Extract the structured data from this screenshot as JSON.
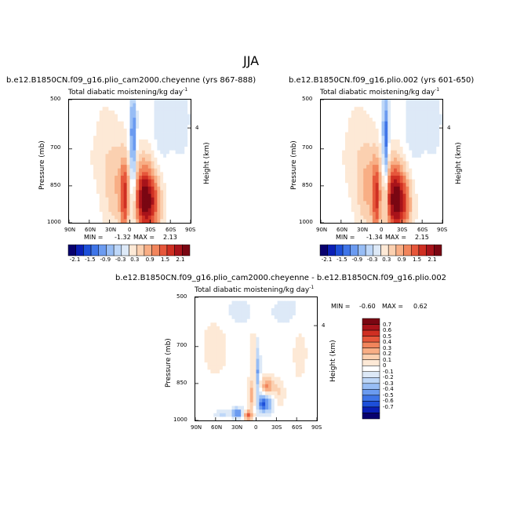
{
  "figure": {
    "title": "JJA",
    "colors": {
      "neg": [
        "#08006e",
        "#0a1fb5",
        "#1d4fd9",
        "#3f75e8",
        "#6b9bf0",
        "#97bdf5",
        "#bed7f8",
        "#dde9f7"
      ],
      "pos": [
        "#fde9d6",
        "#fbd0b0",
        "#f8ae85",
        "#f1855c",
        "#e6573b",
        "#cf2f22",
        "#a8131a",
        "#7a0612"
      ],
      "zero": "#ffffff"
    }
  },
  "chart_data": [
    {
      "type": "heatmap",
      "case": "b.e12.B1850CN.f09_g16.plio_cam2000.cheyenne (yrs 867-888)",
      "title": "Total diabatic moistening/kg day",
      "title_exp": "-1",
      "ylabel": "Pressure (mb)",
      "ylabel_right": "Height (km)",
      "xticks": [
        "90N",
        "60N",
        "30N",
        "0",
        "30S",
        "60S",
        "90S"
      ],
      "yticks": [
        "500",
        "700",
        "850",
        "1000"
      ],
      "yticks_right": [
        "4"
      ],
      "min_label": "MIN =",
      "min": "-1.32",
      "max_label": "MAX =",
      "max": "2.13",
      "colorbar": [
        "-2.1",
        "-1.5",
        "-0.9",
        "-0.3",
        "0.3",
        "0.9",
        "1.5",
        "2.1"
      ],
      "blobs": [
        {
          "lat": -5,
          "p": 720,
          "w": 4,
          "h": 220,
          "v": -1.3
        },
        {
          "lat": -4,
          "p": 600,
          "w": 6,
          "h": 140,
          "v": -0.5
        },
        {
          "lat": 20,
          "p": 860,
          "w": 18,
          "h": 180,
          "v": 0.7
        },
        {
          "lat": 8,
          "p": 900,
          "w": 6,
          "h": 160,
          "v": 1.4
        },
        {
          "lat": -20,
          "p": 900,
          "w": 14,
          "h": 150,
          "v": 2.1
        },
        {
          "lat": -35,
          "p": 920,
          "w": 14,
          "h": 140,
          "v": 1.2
        },
        {
          "lat": -45,
          "p": 620,
          "w": 14,
          "h": 200,
          "v": -0.3
        },
        {
          "lat": 40,
          "p": 680,
          "w": 26,
          "h": 200,
          "v": 0.25
        },
        {
          "lat": 60,
          "p": 560,
          "w": 10,
          "h": 100,
          "v": -0.2
        },
        {
          "lat": -75,
          "p": 580,
          "w": 18,
          "h": 200,
          "v": -0.25
        }
      ]
    },
    {
      "type": "heatmap",
      "case": "b.e12.B1850CN.f09_g16.plio.002 (yrs 601-650)",
      "title": "Total diabatic moistening/kg day",
      "title_exp": "-1",
      "ylabel": "Pressure (mb)",
      "ylabel_right": "Height (km)",
      "xticks": [
        "90N",
        "60N",
        "30N",
        "0",
        "30S",
        "60S",
        "90S"
      ],
      "yticks": [
        "500",
        "700",
        "850",
        "1000"
      ],
      "yticks_right": [
        "4"
      ],
      "min_label": "MIN =",
      "min": "-1.34",
      "max_label": "MAX =",
      "max": "2.15",
      "colorbar": [
        "-2.1",
        "-1.5",
        "-0.9",
        "-0.3",
        "0.3",
        "0.9",
        "1.5",
        "2.1"
      ],
      "blobs": [
        {
          "lat": -6,
          "p": 710,
          "w": 4,
          "h": 220,
          "v": -1.3
        },
        {
          "lat": -5,
          "p": 600,
          "w": 6,
          "h": 140,
          "v": -0.5
        },
        {
          "lat": 20,
          "p": 860,
          "w": 18,
          "h": 180,
          "v": 0.8
        },
        {
          "lat": 8,
          "p": 900,
          "w": 6,
          "h": 160,
          "v": 1.3
        },
        {
          "lat": -18,
          "p": 900,
          "w": 14,
          "h": 150,
          "v": 2.1
        },
        {
          "lat": -33,
          "p": 920,
          "w": 14,
          "h": 140,
          "v": 1.2
        },
        {
          "lat": -45,
          "p": 620,
          "w": 14,
          "h": 200,
          "v": -0.3
        },
        {
          "lat": 40,
          "p": 680,
          "w": 26,
          "h": 200,
          "v": 0.25
        },
        {
          "lat": 60,
          "p": 560,
          "w": 10,
          "h": 100,
          "v": -0.2
        },
        {
          "lat": -75,
          "p": 580,
          "w": 18,
          "h": 200,
          "v": -0.25
        }
      ]
    },
    {
      "type": "heatmap",
      "case": "b.e12.B1850CN.f09_g16.plio_cam2000.cheyenne - b.e12.B1850CN.f09_g16.plio.002",
      "title": "Total diabatic moistening/kg day",
      "title_exp": "-1",
      "ylabel": "Pressure (mb)",
      "ylabel_right": "Height (km)",
      "xticks": [
        "90N",
        "60N",
        "30N",
        "0",
        "30S",
        "60S",
        "90S"
      ],
      "yticks": [
        "500",
        "700",
        "850",
        "1000"
      ],
      "yticks_right": [
        "4"
      ],
      "min_label": "MIN =",
      "min": "-0.60",
      "max_label": "MAX =",
      "max": "0.62",
      "colorbar": [
        "0.7",
        "0.6",
        "0.5",
        "0.4",
        "0.3",
        "0.2",
        "0.1",
        "0",
        "-0.1",
        "-0.2",
        "-0.3",
        "-0.4",
        "-0.5",
        "-0.6",
        "-0.7"
      ],
      "blobs": [
        {
          "lat": -3,
          "p": 800,
          "w": 3,
          "h": 100,
          "v": -0.4
        },
        {
          "lat": -10,
          "p": 930,
          "w": 7,
          "h": 40,
          "v": -0.55
        },
        {
          "lat": -20,
          "p": 930,
          "w": 6,
          "h": 40,
          "v": -0.3
        },
        {
          "lat": 28,
          "p": 970,
          "w": 8,
          "h": 20,
          "v": -0.5
        },
        {
          "lat": 50,
          "p": 975,
          "w": 10,
          "h": 15,
          "v": -0.2
        },
        {
          "lat": -17,
          "p": 860,
          "w": 10,
          "h": 40,
          "v": 0.4
        },
        {
          "lat": 7,
          "p": 900,
          "w": 5,
          "h": 60,
          "v": 0.3
        },
        {
          "lat": 12,
          "p": 980,
          "w": 6,
          "h": 20,
          "v": 0.5
        },
        {
          "lat": -35,
          "p": 890,
          "w": 8,
          "h": 50,
          "v": 0.15
        },
        {
          "lat": 5,
          "p": 720,
          "w": 6,
          "h": 120,
          "v": 0.12
        },
        {
          "lat": 60,
          "p": 680,
          "w": 22,
          "h": 160,
          "v": 0.1
        },
        {
          "lat": -65,
          "p": 720,
          "w": 14,
          "h": 160,
          "v": 0.08
        },
        {
          "lat": 30,
          "p": 560,
          "w": 40,
          "h": 80,
          "v": -0.08
        },
        {
          "lat": -50,
          "p": 560,
          "w": 30,
          "h": 80,
          "v": -0.08
        }
      ]
    }
  ]
}
